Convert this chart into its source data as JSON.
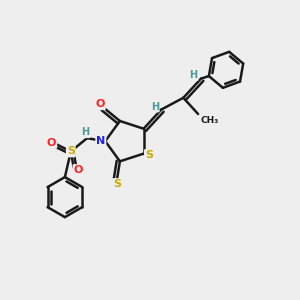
{
  "bg_color": "#eeeeee",
  "atom_colors": {
    "C": "#1a1a1a",
    "H": "#4a9999",
    "N": "#2020ff",
    "O": "#ff2020",
    "S": "#ccaa00"
  },
  "bond_color": "#1a1a1a",
  "bond_width": 1.8
}
